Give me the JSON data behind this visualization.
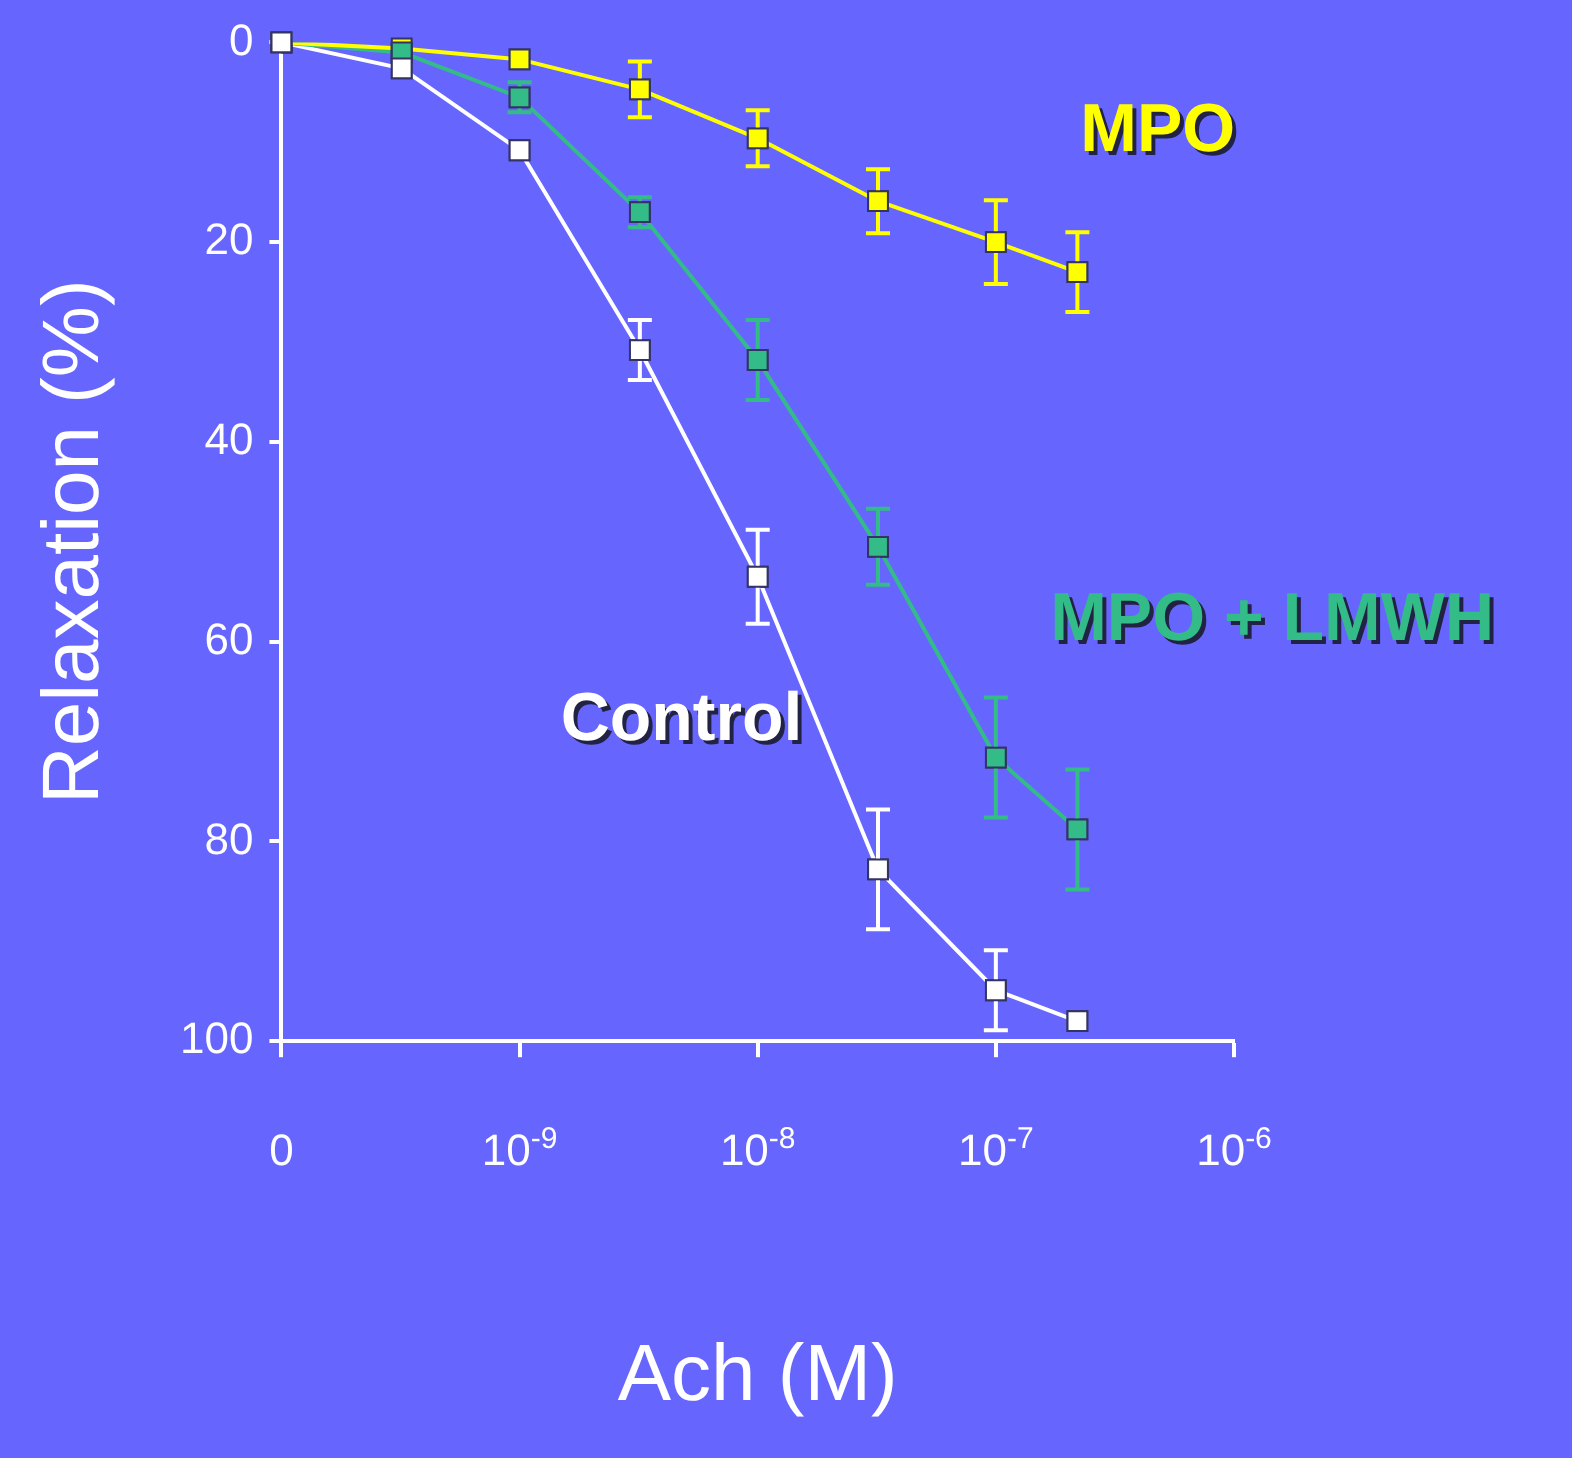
{
  "chart_data": {
    "type": "line",
    "xlabel": "Ach (M)",
    "ylabel": "Relaxation (%)",
    "x": [
      1e-10,
      3.2e-10,
      1e-09,
      3.2e-09,
      1e-08,
      3.2e-08,
      1e-07,
      2.2e-07
    ],
    "log": "x",
    "xlim": [
      1e-10,
      1e-06
    ],
    "xticks": [
      {
        "value": 1e-10,
        "label": "0"
      },
      {
        "value": 1e-09,
        "label": "10$^{-9}$"
      },
      {
        "value": 1e-08,
        "label": "10$^{-8}$"
      },
      {
        "value": 1e-07,
        "label": "10$^{-7}$"
      },
      {
        "value": 1e-06,
        "label": "10$^{-6}$"
      }
    ],
    "ylim": [
      100,
      0
    ],
    "yticks": [
      0,
      20,
      40,
      60,
      80,
      100
    ],
    "grid": false,
    "legend": false,
    "marker": "square",
    "line_style": "solid",
    "series": [
      {
        "name": "MPO",
        "color": "#ffff00",
        "values": [
          0,
          0.6,
          1.7,
          4.7,
          9.6,
          15.9,
          20,
          23
        ],
        "errors": [
          null,
          null,
          null,
          2.8,
          2.8,
          3.2,
          4.2,
          4
        ]
      },
      {
        "name": "MPO + LMWH",
        "color": "#33bb88",
        "values": [
          0,
          1,
          5.5,
          17,
          31.8,
          50.5,
          71.6,
          78.8
        ],
        "errors": [
          null,
          null,
          1.5,
          1.5,
          4,
          3.8,
          6,
          6
        ]
      },
      {
        "name": "Control",
        "color": "#ffffff",
        "values": [
          0,
          2.6,
          10.8,
          30.8,
          53.5,
          82.8,
          94.9,
          98
        ],
        "errors": [
          null,
          null,
          null,
          3,
          4.7,
          6,
          4,
          null
        ]
      }
    ]
  }
}
